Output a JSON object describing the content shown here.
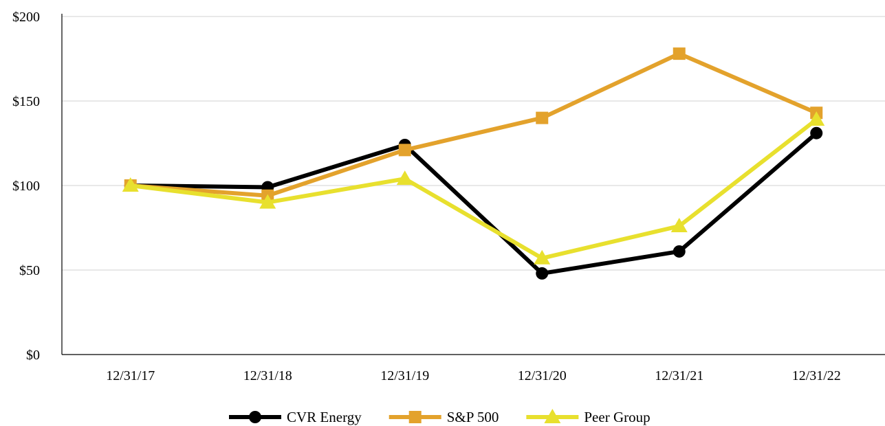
{
  "chart_data": {
    "type": "line",
    "categories": [
      "12/31/17",
      "12/31/18",
      "12/31/19",
      "12/31/20",
      "12/31/21",
      "12/31/22"
    ],
    "ylim": [
      0,
      200
    ],
    "yticks": [
      0,
      50,
      100,
      150,
      200
    ],
    "ytick_labels": [
      "$0",
      "$50",
      "$100",
      "$150",
      "$200"
    ],
    "grid": "horizontal",
    "legend_position": "bottom",
    "series": [
      {
        "name": "CVR Energy",
        "values": [
          100,
          99,
          124,
          48,
          61,
          131
        ],
        "color": "#000000",
        "marker": "circle"
      },
      {
        "name": "S&P 500",
        "values": [
          100,
          94,
          121,
          140,
          178,
          143
        ],
        "color": "#E3A22C",
        "marker": "square"
      },
      {
        "name": "Peer Group",
        "values": [
          100,
          90,
          104,
          57,
          76,
          139
        ],
        "color": "#E8E02E",
        "marker": "triangle"
      }
    ]
  }
}
